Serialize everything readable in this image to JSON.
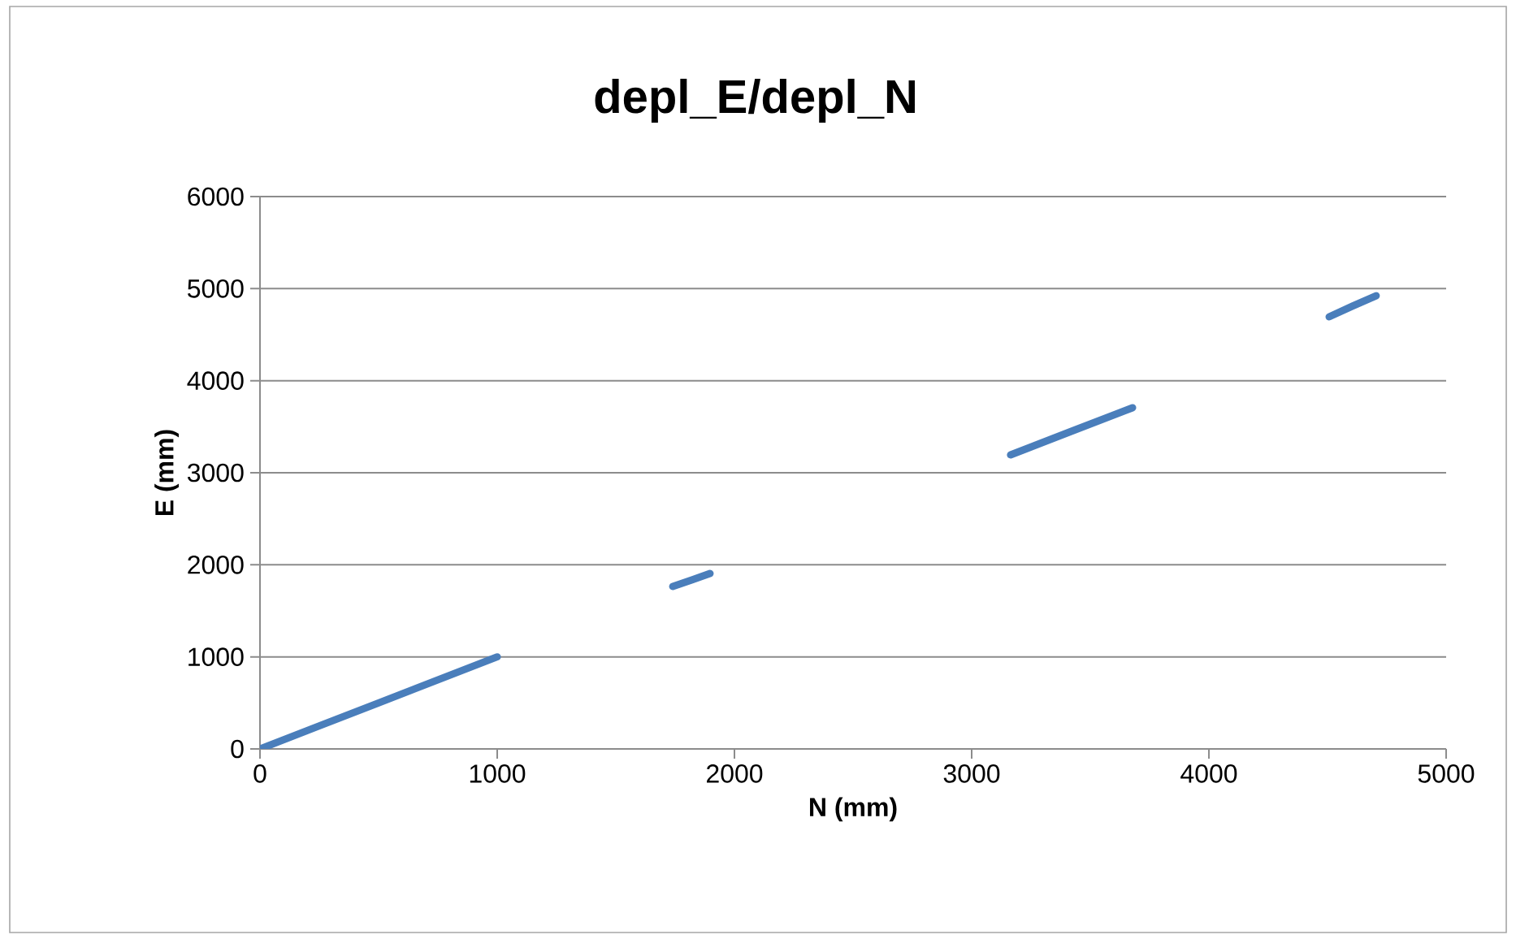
{
  "chart_data": {
    "type": "line",
    "title": "depl_E/depl_N",
    "xlabel": "N (mm)",
    "ylabel": "E (mm)",
    "x": [
      0,
      250,
      500,
      750,
      1000,
      1370,
      1740,
      1820,
      1897,
      2530,
      3164,
      3420,
      3678,
      4090,
      4507,
      4605,
      4705
    ],
    "series": [
      {
        "color": "#4a7ebb",
        "values": [
          0,
          250,
          500,
          750,
          1000,
          null,
          1765,
          1835,
          1906,
          null,
          3194,
          3450,
          3706,
          null,
          4694,
          4810,
          4923
        ]
      }
    ],
    "xlim": [
      0,
      5000
    ],
    "ylim": [
      0,
      6000
    ],
    "xticks": [
      0,
      1000,
      2000,
      3000,
      4000,
      5000
    ],
    "yticks": [
      0,
      1000,
      2000,
      3000,
      4000,
      5000,
      6000
    ],
    "grid": "y",
    "marker": "none",
    "line_style": "solid"
  }
}
